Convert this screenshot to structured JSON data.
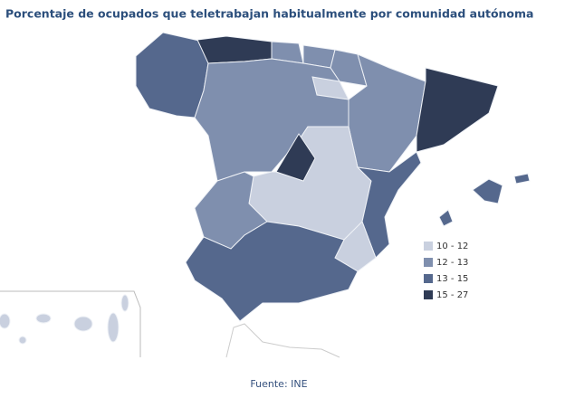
{
  "map": {
    "title": "Porcentaje de ocupados que teletrabajan habitualmente  por comunidad  autónoma",
    "legend": [
      {
        "label": "10 - 12",
        "color": "#c9d0df"
      },
      {
        "label": "12 - 13",
        "color": "#7f8fae"
      },
      {
        "label": "13 - 15",
        "color": "#55688d"
      },
      {
        "label": "15 - 27",
        "color": "#2f3b55"
      }
    ],
    "source": "Fuente: INE"
  }
}
